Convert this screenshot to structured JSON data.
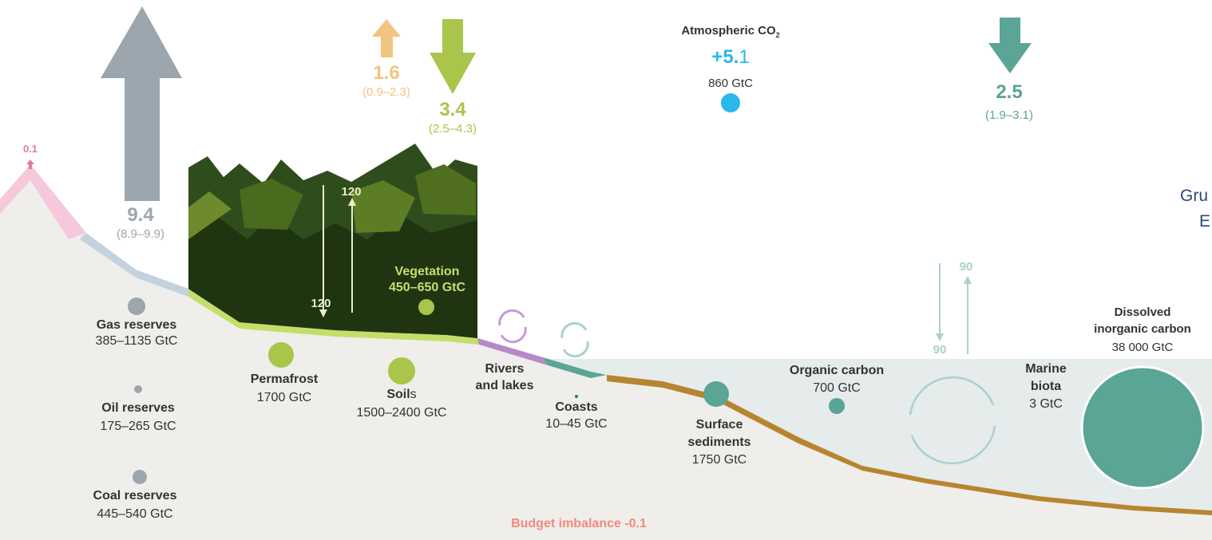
{
  "colors": {
    "fossil": "#9ba6ae",
    "land_use": "#f2c47f",
    "land_sink": "#a9c54a",
    "ocean": "#5aa595",
    "atmosphere": "#2ab7ea",
    "ground": "#efeeea",
    "ocean_water": "#e6ebec",
    "river": "#b68ac4",
    "sediment": "#b78530",
    "emission_pink": "#e07ba4",
    "budget": "#f08a7d",
    "cut_text": "#2c4a77"
  },
  "atmosphere": {
    "label": "Atmospheric CO",
    "subscript": "2",
    "growth_main": "+5.",
    "growth_rest": "1",
    "stock": "860 GtC"
  },
  "fluxes": {
    "fossil": {
      "value": "9.4",
      "range": "(8.9–9.9)"
    },
    "land_use": {
      "value": "1.6",
      "range": "(0.9–2.3)"
    },
    "land_sink": {
      "value": "3.4",
      "range": "(2.5–4.3)"
    },
    "ocean_sink": {
      "value": "2.5",
      "range": "(1.9–3.1)"
    },
    "volcanic": {
      "value": "0.1"
    }
  },
  "gross": {
    "land_down": "120",
    "land_up": "120",
    "ocean_down": "90",
    "ocean_up": "90"
  },
  "stores": {
    "gas": {
      "name": "Gas reserves",
      "value": "385–1135 GtC"
    },
    "oil": {
      "name": "Oil reserves",
      "value": "175–265 GtC"
    },
    "coal": {
      "name": "Coal reserves",
      "value": "445–540 GtC"
    },
    "permafrost": {
      "name": "Permafrost",
      "value": "1700 GtC"
    },
    "soils": {
      "name": "Soil",
      "name_suffix": "s",
      "value": "1500–2400 GtC"
    },
    "vegetation": {
      "name": "Vegetation",
      "value": "450–650 GtC"
    },
    "rivers": {
      "name_line1": "Rivers",
      "name_line2": "and lakes"
    },
    "coasts": {
      "name": "Coasts",
      "value": "10–45 GtC"
    },
    "sediments": {
      "name_line1": "Surface",
      "name_line2": "sediments",
      "value": "1750 GtC"
    },
    "organic": {
      "name": "Organic carbon",
      "value": "700 GtC"
    },
    "marine_biota": {
      "name_line1": "Marine",
      "name_line2": "biota",
      "value": "3 GtC"
    },
    "dic": {
      "name_line1": "Dissolved",
      "name_line2": "inorganic carbon",
      "value": "38 000 GtC"
    }
  },
  "budget_imbalance": "Budget imbalance -0.1",
  "cut_text": {
    "line1": "Gru",
    "line2": "E"
  }
}
